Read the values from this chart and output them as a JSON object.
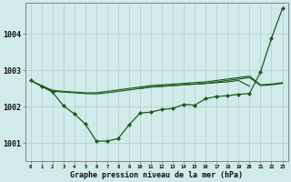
{
  "title": "Graphe pression niveau de la mer (hPa)",
  "hours": [
    0,
    1,
    2,
    3,
    4,
    5,
    6,
    7,
    8,
    9,
    10,
    11,
    12,
    13,
    14,
    15,
    16,
    17,
    18,
    19,
    20,
    21,
    22,
    23
  ],
  "ylim": [
    1000.5,
    1004.85
  ],
  "yticks": [
    1001,
    1002,
    1003,
    1004
  ],
  "bg_color": "#d1eaea",
  "grid_color": "#b0cccc",
  "line_color": "#1a5c1a",
  "line_top": [
    1002.72,
    1002.58,
    1002.45,
    1002.42,
    1002.4,
    1002.38,
    1002.38,
    1002.42,
    1002.46,
    1002.5,
    1002.54,
    1002.58,
    1002.6,
    1002.62,
    1002.64,
    1002.66,
    1002.68,
    1002.72,
    1002.76,
    1002.8,
    1002.84,
    1002.6,
    1002.62,
    1002.66
  ],
  "line_mid1": [
    1002.72,
    1002.56,
    1002.42,
    1002.4,
    1002.38,
    1002.36,
    1002.35,
    1002.38,
    1002.42,
    1002.46,
    1002.5,
    1002.54,
    1002.56,
    1002.58,
    1002.6,
    1002.62,
    1002.64,
    1002.68,
    1002.72,
    1002.76,
    1002.8,
    1002.58,
    1002.6,
    1002.64
  ],
  "line_mid2_x": [
    10,
    11,
    12,
    13,
    14,
    15,
    16,
    17,
    18,
    19,
    20
  ],
  "line_mid2": [
    1002.5,
    1002.54,
    1002.56,
    1002.58,
    1002.6,
    1002.62,
    1002.64,
    1002.66,
    1002.68,
    1002.72,
    1002.56
  ],
  "line_main": [
    1002.72,
    1002.56,
    1002.4,
    1002.02,
    1001.8,
    1001.52,
    1001.05,
    1001.05,
    1001.12,
    1001.5,
    1001.82,
    1001.85,
    1001.92,
    1001.95,
    1002.06,
    1002.04,
    1002.22,
    1002.28,
    1002.3,
    1002.34,
    1002.36,
    1002.95,
    1003.88,
    1004.7
  ]
}
